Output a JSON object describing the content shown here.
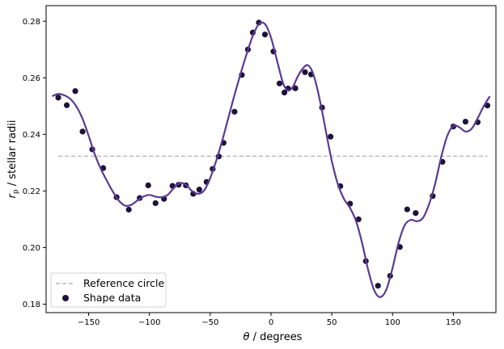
{
  "chart_data": {
    "type": "scatter",
    "title": "",
    "xlabel_symbol": "θ",
    "xlabel_text": " / degrees",
    "ylabel_symbol": "r",
    "ylabel_sub": "p",
    "ylabel_text": " / stellar radii",
    "xlim": [
      -185,
      185
    ],
    "ylim": [
      0.177,
      0.2855
    ],
    "xticks": [
      -150,
      -100,
      -50,
      0,
      50,
      100,
      150
    ],
    "xtick_labels": [
      "−150",
      "−100",
      "−50",
      "0",
      "50",
      "100",
      "150"
    ],
    "yticks": [
      0.18,
      0.2,
      0.22,
      0.24,
      0.26,
      0.28
    ],
    "ytick_labels": [
      "0.18",
      "0.20",
      "0.22",
      "0.24",
      "0.26",
      "0.28"
    ],
    "grid": false,
    "legend_position": "lower-left",
    "series": [
      {
        "name": "Reference circle",
        "kind": "line",
        "style": "dashed",
        "color": "#bbbbbb",
        "x": [
          -175,
          178
        ],
        "y": [
          0.2323,
          0.2323
        ]
      },
      {
        "name": "Shape data",
        "kind": "scatter",
        "color": "#1d1238",
        "x": [
          -175,
          -168,
          -161,
          -155,
          -147,
          -138,
          -127,
          -117,
          -108,
          -101,
          -95,
          -88,
          -81,
          -76,
          -70,
          -64,
          -59,
          -53,
          -48,
          -43,
          -39,
          -30,
          -24,
          -19,
          -15,
          -10,
          -5,
          2,
          7,
          11,
          14,
          20,
          28,
          33,
          42,
          49,
          57,
          65,
          72,
          78,
          88,
          98,
          106,
          112,
          119,
          133,
          141,
          150,
          160,
          170,
          178
        ],
        "y": [
          0.253,
          0.2503,
          0.2553,
          0.241,
          0.2347,
          0.2281,
          0.2178,
          0.2134,
          0.2175,
          0.222,
          0.2157,
          0.2172,
          0.2218,
          0.2222,
          0.222,
          0.219,
          0.2205,
          0.2232,
          0.2278,
          0.2322,
          0.237,
          0.248,
          0.261,
          0.27,
          0.276,
          0.2795,
          0.2753,
          0.2693,
          0.258,
          0.2548,
          0.2562,
          0.2563,
          0.262,
          0.2612,
          0.2495,
          0.2392,
          0.2217,
          0.2155,
          0.21,
          0.1952,
          0.1865,
          0.19,
          0.2002,
          0.2135,
          0.2122,
          0.2182,
          0.2303,
          0.2428,
          0.2445,
          0.2443,
          0.2502
        ]
      },
      {
        "name": "",
        "kind": "line",
        "style": "solid",
        "color": "#5b3a93",
        "x": [
          -180,
          -175,
          -170,
          -165,
          -160,
          -155,
          -150,
          -145,
          -140,
          -135,
          -130,
          -125,
          -120,
          -115,
          -110,
          -105,
          -100,
          -95,
          -90,
          -85,
          -80,
          -75,
          -70,
          -65,
          -60,
          -55,
          -50,
          -45,
          -40,
          -35,
          -30,
          -25,
          -20,
          -15,
          -10,
          -5,
          0,
          5,
          10,
          14,
          18,
          22,
          26,
          30,
          34,
          38,
          42,
          46,
          50,
          55,
          60,
          65,
          70,
          75,
          80,
          85,
          90,
          95,
          100,
          105,
          110,
          115,
          120,
          125,
          130,
          135,
          140,
          145,
          150,
          155,
          160,
          165,
          170,
          175,
          180
        ],
        "y": [
          0.2535,
          0.2543,
          0.2538,
          0.2525,
          0.2498,
          0.2455,
          0.2395,
          0.233,
          0.2278,
          0.2236,
          0.2197,
          0.2165,
          0.2148,
          0.2151,
          0.2166,
          0.218,
          0.2186,
          0.218,
          0.2178,
          0.2186,
          0.221,
          0.2228,
          0.2222,
          0.22,
          0.219,
          0.2202,
          0.2246,
          0.2308,
          0.238,
          0.246,
          0.254,
          0.2615,
          0.2685,
          0.2748,
          0.279,
          0.279,
          0.2742,
          0.266,
          0.258,
          0.2555,
          0.2568,
          0.2605,
          0.2632,
          0.2645,
          0.2622,
          0.2563,
          0.2482,
          0.2392,
          0.2306,
          0.2224,
          0.2172,
          0.214,
          0.2093,
          0.2015,
          0.192,
          0.1848,
          0.1825,
          0.1853,
          0.1928,
          0.2018,
          0.2079,
          0.2098,
          0.2093,
          0.2105,
          0.2153,
          0.2225,
          0.232,
          0.2395,
          0.243,
          0.2425,
          0.241,
          0.242,
          0.2457,
          0.25,
          0.2535
        ]
      }
    ],
    "legend": {
      "entries": [
        {
          "label": "Reference circle",
          "marker": "dashed-line",
          "color": "#bbbbbb"
        },
        {
          "label": "Shape data",
          "marker": "dot",
          "color": "#1d1238"
        }
      ]
    }
  }
}
